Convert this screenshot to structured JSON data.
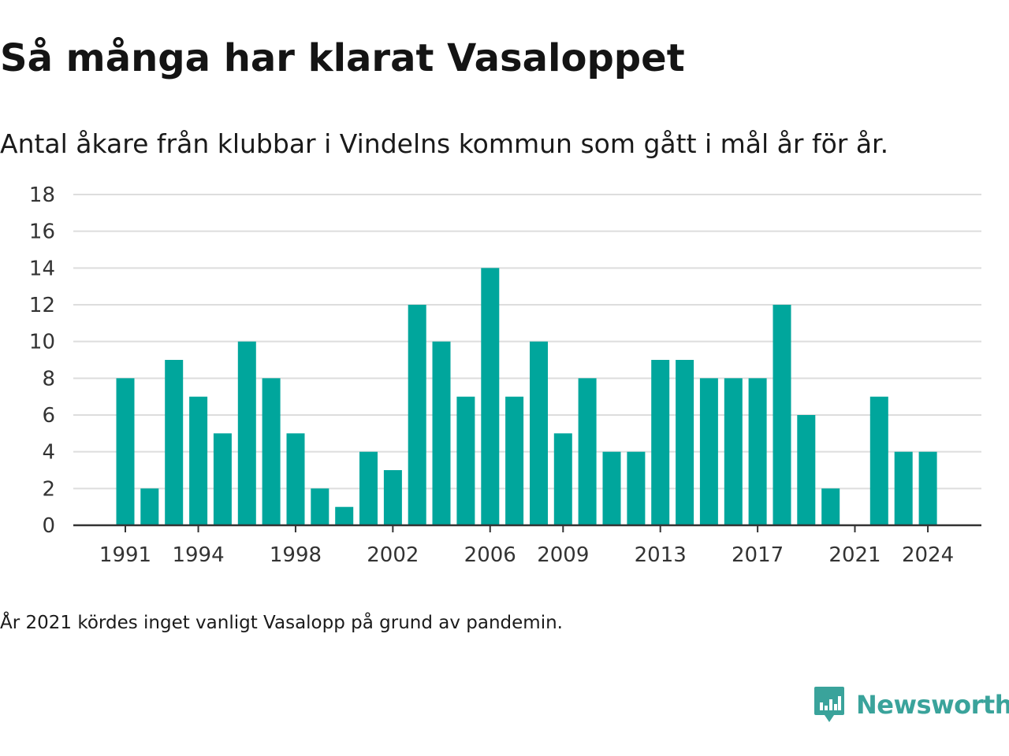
{
  "title": "Så många har klarat Vasaloppet",
  "subtitle": "Antal åkare från klubbar i Vindelns kommun som gått i mål år för år.",
  "note": "År 2021 kördes inget vanligt Vasalopp på grund av pandemin.",
  "brand": {
    "name": "Newsworthy",
    "icon": "newsworthy-logo-icon",
    "color": "#3aa39b"
  },
  "colors": {
    "bar": "#00a69c",
    "grid": "#dddddd",
    "axis": "#333333",
    "text": "#333333"
  },
  "chart_data": {
    "type": "bar",
    "xlabel": "",
    "ylabel": "",
    "ylim": [
      0,
      18
    ],
    "yticks": [
      0,
      2,
      4,
      6,
      8,
      10,
      12,
      14,
      16,
      18
    ],
    "xtick_labels": [
      "1991",
      "1994",
      "1998",
      "2002",
      "2006",
      "2009",
      "2013",
      "2017",
      "2021",
      "2024"
    ],
    "grid": true,
    "categories": [
      "1991",
      "1992",
      "1993",
      "1994",
      "1995",
      "1996",
      "1997",
      "1998",
      "1999",
      "2000",
      "2001",
      "2002",
      "2003",
      "2004",
      "2005",
      "2006",
      "2007",
      "2008",
      "2009",
      "2010",
      "2011",
      "2012",
      "2013",
      "2014",
      "2015",
      "2016",
      "2017",
      "2018",
      "2019",
      "2020",
      "2021",
      "2022",
      "2023",
      "2024"
    ],
    "values": [
      8,
      2,
      9,
      7,
      5,
      10,
      8,
      5,
      2,
      1,
      4,
      3,
      12,
      10,
      7,
      14,
      7,
      10,
      5,
      8,
      4,
      4,
      9,
      9,
      8,
      8,
      8,
      12,
      6,
      2,
      0,
      7,
      4,
      4
    ]
  }
}
